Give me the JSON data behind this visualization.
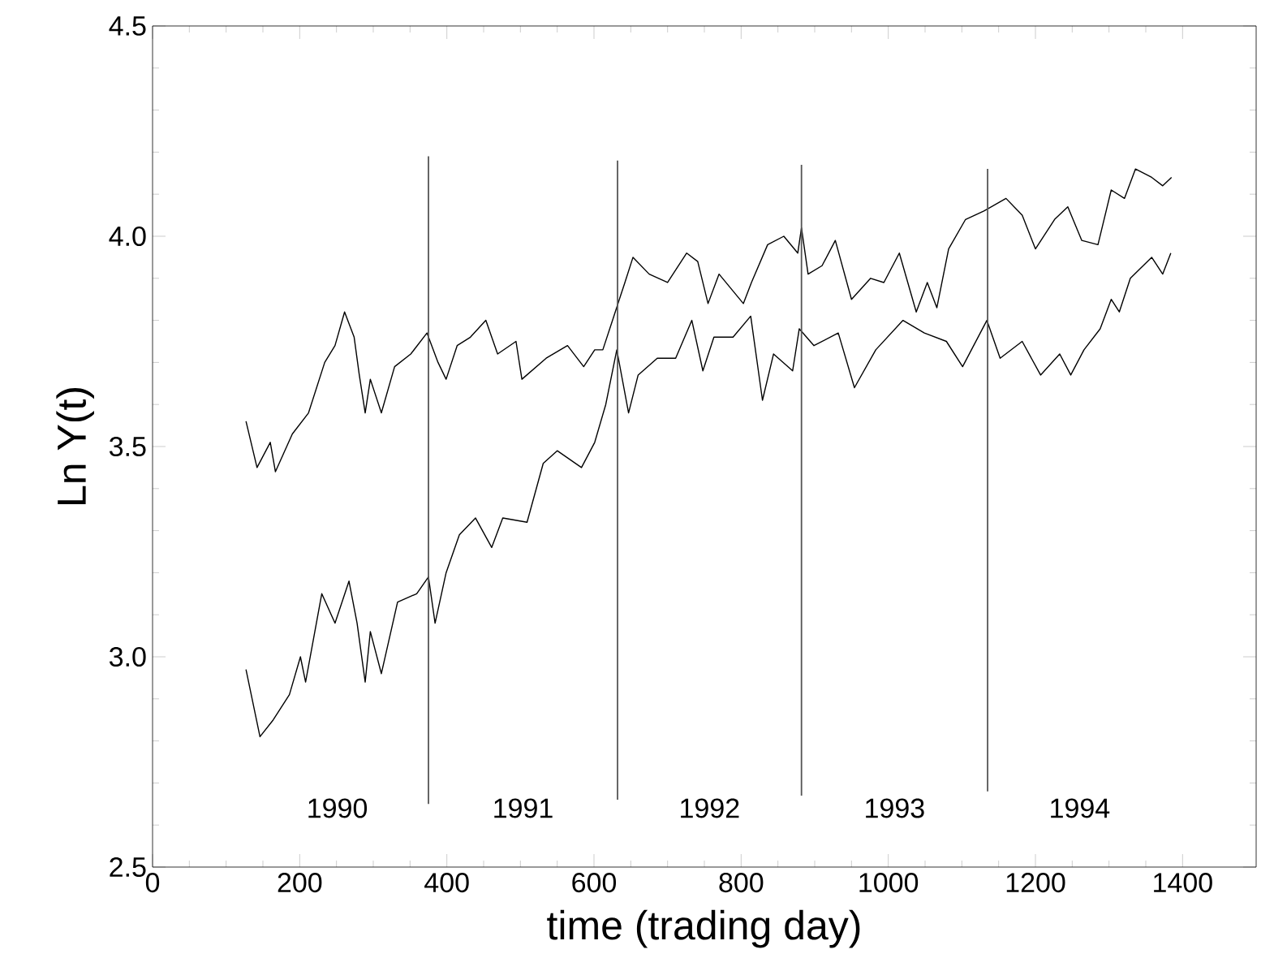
{
  "chart_data": {
    "type": "line",
    "xlabel": "time (trading day)",
    "ylabel": "Ln Y(t)",
    "xlim": [
      0,
      1500
    ],
    "ylim": [
      2.5,
      4.5
    ],
    "xticks": [
      0,
      200,
      400,
      600,
      800,
      1000,
      1200,
      1400
    ],
    "yticks": [
      {
        "value": 2.5,
        "label": "2.5"
      },
      {
        "value": 3,
        "label": "3.0"
      },
      {
        "value": 3.5,
        "label": "3.5"
      },
      {
        "value": 4,
        "label": "4.0"
      },
      {
        "value": 4.5,
        "label": "4.5"
      }
    ],
    "marker": "none",
    "line_style": "solid",
    "series": [
      {
        "color": "#000000",
        "x": [
          127,
          142,
          160,
          167,
          190,
          212,
          234,
          248,
          261,
          274,
          281,
          289,
          296,
          311,
          329,
          351,
          373,
          388,
          399,
          414,
          432,
          453,
          469,
          494,
          502,
          535,
          564,
          586,
          601,
          612,
          627,
          642,
          653,
          675,
          700,
          726,
          741,
          755,
          770,
          803,
          814,
          836,
          858,
          877,
          882,
          891,
          910,
          928,
          950,
          976,
          994,
          1015,
          1038,
          1053,
          1066,
          1082,
          1105,
          1130,
          1160,
          1182,
          1200,
          1226,
          1244,
          1263,
          1285,
          1303,
          1321,
          1336,
          1358,
          1373,
          1385
        ],
        "values": [
          3.56,
          3.45,
          3.51,
          3.44,
          3.53,
          3.58,
          3.7,
          3.74,
          3.82,
          3.76,
          3.67,
          3.58,
          3.66,
          3.58,
          3.69,
          3.72,
          3.77,
          3.7,
          3.66,
          3.74,
          3.76,
          3.8,
          3.72,
          3.75,
          3.66,
          3.71,
          3.74,
          3.69,
          3.73,
          3.73,
          3.81,
          3.89,
          3.95,
          3.91,
          3.89,
          3.96,
          3.94,
          3.84,
          3.91,
          3.84,
          3.89,
          3.98,
          4.0,
          3.96,
          4.02,
          3.91,
          3.93,
          3.99,
          3.85,
          3.9,
          3.89,
          3.96,
          3.82,
          3.89,
          3.83,
          3.97,
          4.04,
          4.06,
          4.09,
          4.05,
          3.97,
          4.04,
          4.07,
          3.99,
          3.98,
          4.11,
          4.09,
          4.16,
          4.14,
          4.12,
          4.14
        ]
      },
      {
        "color": "#000000",
        "x": [
          127,
          146,
          164,
          186,
          201,
          208,
          230,
          248,
          267,
          278,
          289,
          296,
          311,
          333,
          359,
          375,
          384,
          399,
          417,
          439,
          461,
          476,
          509,
          531,
          550,
          583,
          601,
          616,
          631,
          647,
          660,
          686,
          711,
          733,
          748,
          763,
          789,
          813,
          829,
          844,
          870,
          879,
          899,
          932,
          954,
          983,
          1020,
          1049,
          1079,
          1101,
          1134,
          1152,
          1182,
          1207,
          1233,
          1248,
          1266,
          1288,
          1303,
          1314,
          1329,
          1358,
          1373,
          1384
        ],
        "values": [
          2.97,
          2.81,
          2.85,
          2.91,
          3.0,
          2.94,
          3.15,
          3.08,
          3.18,
          3.08,
          2.94,
          3.06,
          2.96,
          3.13,
          3.15,
          3.19,
          3.08,
          3.2,
          3.29,
          3.33,
          3.26,
          3.33,
          3.32,
          3.46,
          3.49,
          3.45,
          3.51,
          3.6,
          3.73,
          3.58,
          3.67,
          3.71,
          3.71,
          3.8,
          3.68,
          3.76,
          3.76,
          3.81,
          3.61,
          3.72,
          3.68,
          3.78,
          3.74,
          3.77,
          3.64,
          3.73,
          3.8,
          3.77,
          3.75,
          3.69,
          3.8,
          3.71,
          3.75,
          3.67,
          3.72,
          3.67,
          3.73,
          3.78,
          3.85,
          3.82,
          3.9,
          3.95,
          3.91,
          3.96
        ]
      },
      {
        "color": "#555555",
        "x": [
          375,
          375
        ],
        "values": [
          2.65,
          4.19
        ]
      },
      {
        "color": "#555555",
        "x": [
          632,
          632
        ],
        "values": [
          2.66,
          4.18
        ]
      },
      {
        "color": "#555555",
        "x": [
          882,
          882
        ],
        "values": [
          2.67,
          4.17
        ]
      },
      {
        "color": "#555555",
        "x": [
          1135,
          1135
        ],
        "values": [
          2.68,
          4.16
        ]
      }
    ],
    "annotations": [
      "1990",
      "1991",
      "1992",
      "1993",
      "1994"
    ]
  }
}
